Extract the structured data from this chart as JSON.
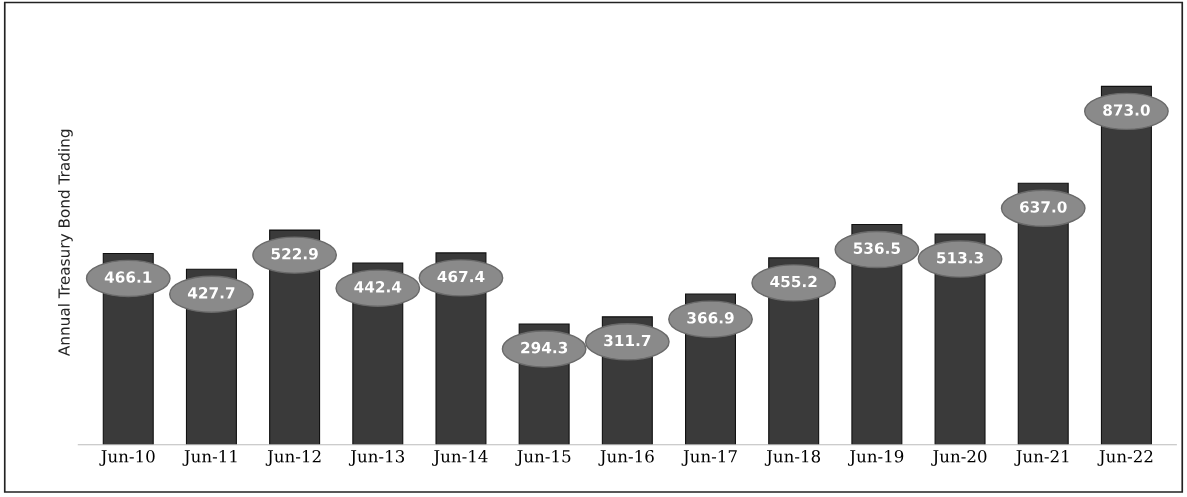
{
  "chart_data": {
    "type": "bar",
    "ylabel": "Annual Treasury Bond Trading",
    "categories": [
      "Jun-10",
      "Jun-11",
      "Jun-12",
      "Jun-13",
      "Jun-14",
      "Jun-15",
      "Jun-16",
      "Jun-17",
      "Jun-18",
      "Jun-19",
      "Jun-20",
      "Jun-21",
      "Jun-22"
    ],
    "values": [
      466.1,
      427.7,
      522.9,
      442.4,
      467.4,
      294.3,
      311.7,
      366.9,
      455.2,
      536.5,
      513.3,
      637.0,
      873.0
    ],
    "value_labels": [
      "466.1",
      "427.7",
      "522.9",
      "442.4",
      "467.4",
      "294.3",
      "311.7",
      "366.9",
      "455.2",
      "536.5",
      "513.3",
      "637.0",
      "873.0"
    ],
    "color": "#3a3a3a",
    "grid": false,
    "legend": false
  }
}
